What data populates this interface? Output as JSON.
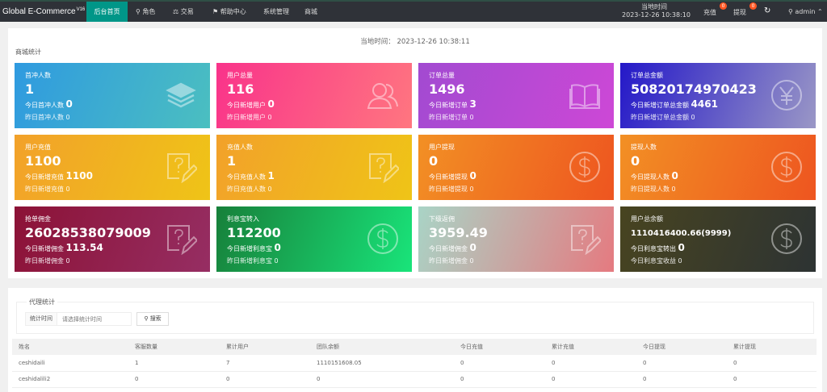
{
  "header": {
    "brand": "Global E-Commerce",
    "version": "V16",
    "nav": [
      "后台首页",
      "角色",
      "交易",
      "帮助中心",
      "系统管理",
      "商城"
    ],
    "time_label": "当地时间",
    "time": "2023-12-26 10:38:10",
    "recharge": "充值",
    "recharge_badge": "0",
    "withdraw": "提现",
    "withdraw_badge": "0",
    "user": "admin",
    "accent": "#009688"
  },
  "main": {
    "time_text": "当地时间： 2023-12-26 10:38:11",
    "section": "商城统计",
    "cards": [
      {
        "title": "首冲人数",
        "value": "1",
        "today_label": "今日首冲人数",
        "today": "0",
        "yesterday_label": "昨日首冲人数",
        "yesterday": "0",
        "icon": "layers-icon",
        "colors": [
          "#2f9ae0",
          "#4bbfc0"
        ]
      },
      {
        "title": "用户总量",
        "value": "116",
        "today_label": "今日新增用户",
        "today": "0",
        "yesterday_label": "昨日新增用户",
        "yesterday": "0",
        "icon": "users-icon",
        "colors": [
          "#f9338a",
          "#ff7680"
        ]
      },
      {
        "title": "订单总量",
        "value": "1496",
        "today_label": "今日新增订单",
        "today": "3",
        "yesterday_label": "昨日新增订单",
        "yesterday": "0",
        "icon": "book-icon",
        "colors": [
          "#a24ad1",
          "#cd48d6"
        ]
      },
      {
        "title": "订单总金额",
        "value": "50820174970423",
        "today_label": "今日新增订单总金额",
        "today": "4461",
        "yesterday_label": "昨日新增订单总金额",
        "yesterday": "0",
        "icon": "yen-icon",
        "colors": [
          "#2418c8",
          "#9a97c6"
        ]
      },
      {
        "title": "用户充值",
        "value": "1100",
        "today_label": "今日新增充值",
        "today": "1100",
        "yesterday_label": "昨日新增充值",
        "yesterday": "0",
        "icon": "question-edit-icon",
        "colors": [
          "#f2a12a",
          "#efc417"
        ]
      },
      {
        "title": "充值人数",
        "value": "1",
        "today_label": "今日充值人数",
        "today": "1",
        "yesterday_label": "昨日充值人数",
        "yesterday": "0",
        "icon": "question-edit-icon",
        "colors": [
          "#f2a12a",
          "#efc417"
        ]
      },
      {
        "title": "用户提现",
        "value": "0",
        "today_label": "今日新增提现",
        "today": "0",
        "yesterday_label": "昨日新增提现",
        "yesterday": "0",
        "icon": "dollar-icon",
        "colors": [
          "#f29024",
          "#ee5520"
        ]
      },
      {
        "title": "提现人数",
        "value": "0",
        "today_label": "今日提现人数",
        "today": "0",
        "yesterday_label": "昨日提现人数",
        "yesterday": "0",
        "icon": "dollar-icon",
        "colors": [
          "#f29024",
          "#ee5520"
        ]
      },
      {
        "title": "抢单佣金",
        "value": "26028538079009",
        "today_label": "今日新增佣金",
        "today": "113.54",
        "yesterday_label": "昨日新增佣金",
        "yesterday": "0",
        "icon": "question-edit-icon",
        "colors": [
          "#8c1236",
          "#962e63"
        ]
      },
      {
        "title": "利息宝转入",
        "value": "112200",
        "today_label": "今日新增利息宝",
        "today": "0",
        "yesterday_label": "昨日新增利息宝",
        "yesterday": "0",
        "icon": "dollar-icon",
        "colors": [
          "#17803a",
          "#19e47a"
        ]
      },
      {
        "title": "下级返佣",
        "value": "3959.49",
        "today_label": "今日新增佣金",
        "today": "0",
        "yesterday_label": "昨日新增佣金",
        "yesterday": "0",
        "icon": "question-edit-icon",
        "colors": [
          "#a9d4c6",
          "#e57a80"
        ]
      },
      {
        "title": "用户总余额",
        "value": "1110416400.66(9999)",
        "today_label": "今日利息宝转出",
        "today": "0",
        "yesterday_label": "今日利息宝收益",
        "yesterday": "0",
        "icon": "dollar-icon",
        "colors": [
          "#484420",
          "#2d3333"
        ]
      }
    ]
  },
  "agent": {
    "legend": "代理统计",
    "filter_label": "统计时间",
    "placeholder": "请选择统计时间",
    "search": "搜索",
    "columns": [
      "姓名",
      "客服数量",
      "累计用户",
      "团队余额",
      "今日充值",
      "累计充值",
      "今日提现",
      "累计提现"
    ],
    "rows": [
      [
        "ceshidaili",
        "1",
        "7",
        "1110151608.05",
        "0",
        "0",
        "0",
        "0"
      ],
      [
        "ceshidalili2",
        "0",
        "0",
        "0",
        "0",
        "0",
        "0",
        "0"
      ]
    ]
  }
}
